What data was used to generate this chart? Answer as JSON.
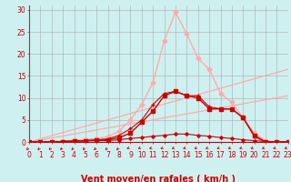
{
  "xlabel": "Vent moyen/en rafales ( km/h )",
  "bg_color": "#cff0f0",
  "grid_color": "#aaaaaa",
  "x_ticks": [
    0,
    1,
    2,
    3,
    4,
    5,
    6,
    7,
    8,
    9,
    10,
    11,
    12,
    13,
    14,
    15,
    16,
    17,
    18,
    19,
    20,
    21,
    22,
    23
  ],
  "y_ticks": [
    0,
    5,
    10,
    15,
    20,
    25,
    30
  ],
  "ylim": [
    0,
    31
  ],
  "xlim": [
    0,
    23
  ],
  "series": [
    {
      "x": [
        0,
        1,
        2,
        3,
        4,
        5,
        6,
        7,
        8,
        9,
        10,
        11,
        12,
        13,
        14,
        15,
        16,
        17,
        18,
        19,
        20,
        21,
        22,
        23
      ],
      "y": [
        0,
        0,
        0,
        0.1,
        0.2,
        0.2,
        0.3,
        0.3,
        0.5,
        0.8,
        1.0,
        1.3,
        1.5,
        1.8,
        1.8,
        1.5,
        1.3,
        1.0,
        0.8,
        0.5,
        0.3,
        0.1,
        0,
        0
      ],
      "color": "#cc0000",
      "linewidth": 0.8,
      "marker": "D",
      "markersize": 1.8,
      "zorder": 4
    },
    {
      "x": [
        0,
        1,
        2,
        3,
        4,
        5,
        6,
        7,
        8,
        9,
        10,
        11,
        12,
        13,
        14,
        15,
        16,
        17,
        18,
        19,
        20,
        21,
        22,
        23
      ],
      "y": [
        0,
        0,
        0,
        0.1,
        0.2,
        0.3,
        0.4,
        0.5,
        1.0,
        2.0,
        4.5,
        7.0,
        10.5,
        11.5,
        10.5,
        10.0,
        7.5,
        7.5,
        7.5,
        5.5,
        1.5,
        0,
        0,
        0
      ],
      "color": "#cc0000",
      "linewidth": 1.0,
      "marker": "s",
      "markersize": 2.2,
      "zorder": 4
    },
    {
      "x": [
        0,
        1,
        2,
        3,
        4,
        5,
        6,
        7,
        8,
        9,
        10,
        11,
        12,
        13,
        14,
        15,
        16,
        17,
        18,
        19,
        20,
        21,
        22,
        23
      ],
      "y": [
        0,
        0,
        0,
        0.1,
        0.2,
        0.3,
        0.5,
        0.7,
        1.5,
        3.0,
        5.0,
        8.5,
        11.0,
        11.5,
        10.5,
        10.5,
        8.0,
        7.5,
        7.5,
        5.5,
        1.2,
        0,
        0,
        0
      ],
      "color": "#cc0000",
      "linewidth": 0.8,
      "marker": "+",
      "markersize": 3.5,
      "zorder": 4
    },
    {
      "x": [
        0,
        1,
        2,
        3,
        4,
        5,
        6,
        7,
        8,
        9,
        10,
        11,
        12,
        13,
        14,
        15,
        16,
        17,
        18,
        19,
        20,
        21,
        22,
        23
      ],
      "y": [
        0,
        0,
        0.1,
        0.2,
        0.4,
        0.6,
        0.8,
        1.2,
        2.5,
        5.0,
        8.5,
        13.5,
        23.0,
        29.5,
        24.5,
        19.0,
        16.5,
        11.0,
        9.0,
        5.5,
        2.0,
        0.3,
        0,
        0
      ],
      "color": "#ffaaaa",
      "linewidth": 1.0,
      "marker": "D",
      "markersize": 2.5,
      "zorder": 3
    },
    {
      "x": [
        0,
        23
      ],
      "y": [
        0,
        10.5
      ],
      "color": "#ffaaaa",
      "linewidth": 0.9,
      "marker": null,
      "markersize": 0,
      "zorder": 2
    },
    {
      "x": [
        0,
        23
      ],
      "y": [
        0,
        16.5
      ],
      "color": "#ffaaaa",
      "linewidth": 0.9,
      "marker": null,
      "markersize": 0,
      "zorder": 2
    }
  ],
  "arrow_color": "#cc0000",
  "xlabel_color": "#cc0000",
  "xlabel_fontsize": 7,
  "tick_fontsize": 5.5,
  "ytick_color": "#cc0000",
  "xtick_color": "#cc0000",
  "spine_color": "#555555"
}
